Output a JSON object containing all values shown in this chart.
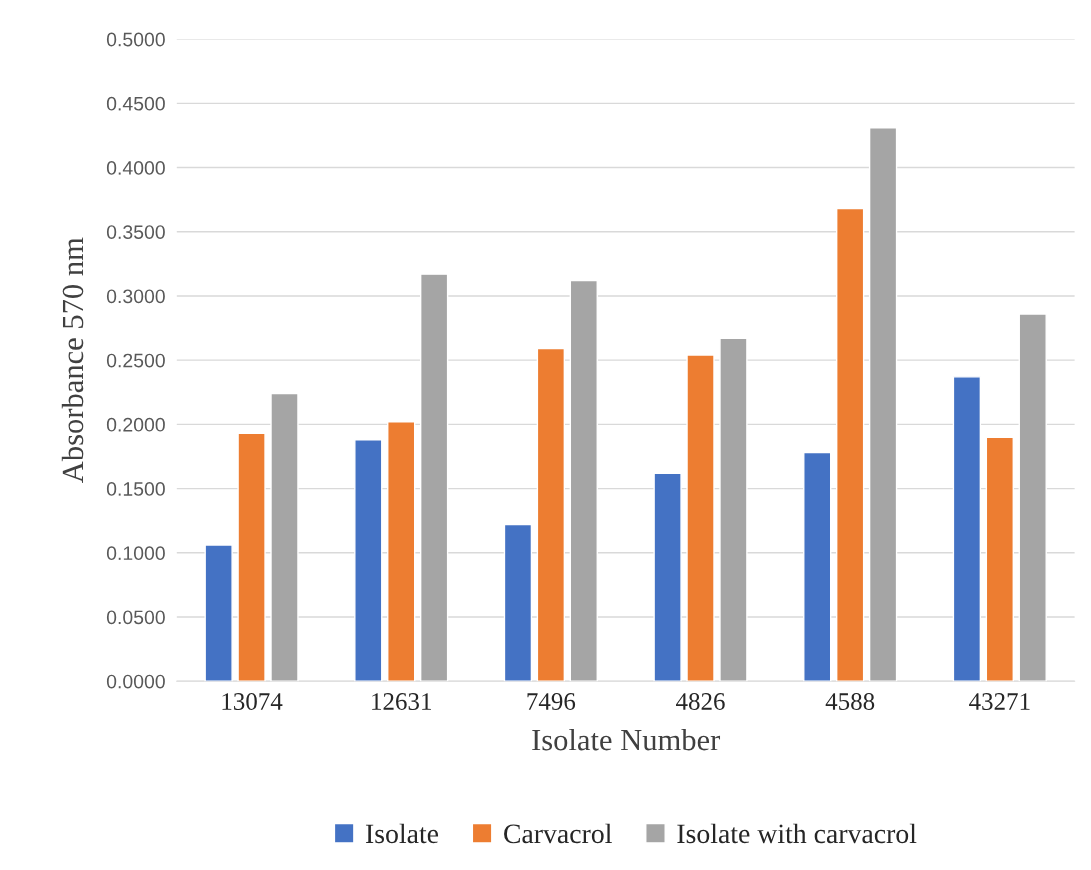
{
  "chart_data": {
    "type": "bar",
    "xlabel": "Isolate Number",
    "ylabel": "Absorbance 570 nm",
    "categories": [
      "13074",
      "12631",
      "7496",
      "4826",
      "4588",
      "43271"
    ],
    "series": [
      {
        "name": "Isolate",
        "color": "#4472c4",
        "values": [
          0.106,
          0.188,
          0.122,
          0.162,
          0.178,
          0.237
        ]
      },
      {
        "name": "Carvacrol",
        "color": "#ed7d31",
        "values": [
          0.193,
          0.202,
          0.259,
          0.254,
          0.368,
          0.19
        ]
      },
      {
        "name": "Isolate with carvacrol",
        "color": "#a5a5a5",
        "values": [
          0.224,
          0.317,
          0.312,
          0.267,
          0.431,
          0.286
        ]
      }
    ],
    "ylim": [
      0,
      0.5
    ],
    "yticks": [
      {
        "value": 0,
        "label": "0.0000"
      },
      {
        "value": 0.05,
        "label": "0.0500"
      },
      {
        "value": 0.1,
        "label": "0.1000"
      },
      {
        "value": 0.15,
        "label": "0.1500"
      },
      {
        "value": 0.2,
        "label": "0.2000"
      },
      {
        "value": 0.25,
        "label": "0.2500"
      },
      {
        "value": 0.3,
        "label": "0.3000"
      },
      {
        "value": 0.35,
        "label": "0.3500"
      },
      {
        "value": 0.4,
        "label": "0.4000"
      },
      {
        "value": 0.45,
        "label": "0.4500"
      },
      {
        "value": 0.5,
        "label": "0.5000"
      }
    ],
    "grid": "y",
    "legend": "bottom"
  }
}
